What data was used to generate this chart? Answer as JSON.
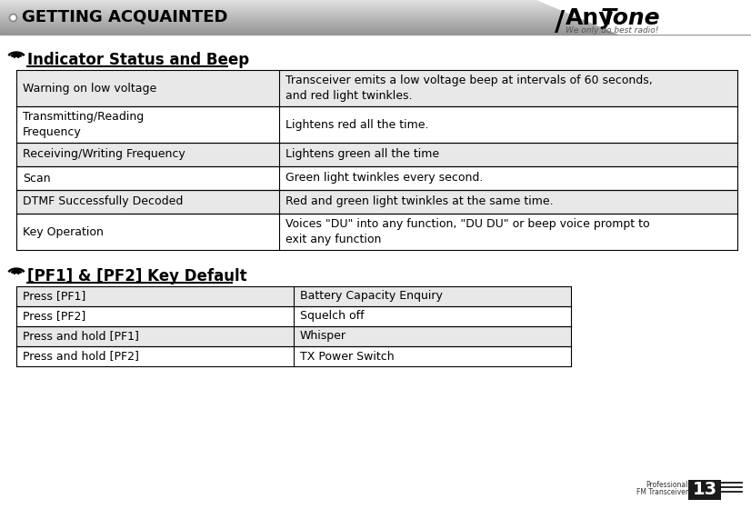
{
  "page_title": "GETTING ACQUAINTED",
  "page_num": "13",
  "page_label_top": "Professional",
  "page_label_bottom": "FM Transceiver",
  "section1_title": "Indicator Status and Beep",
  "section1_rows": [
    [
      "Warning on low voltage",
      "Transceiver emits a low voltage beep at intervals of 60 seconds,\nand red light twinkles."
    ],
    [
      "Transmitting/Reading\nFrequency",
      "Lightens red all the time."
    ],
    [
      "Receiving/Writing Frequency",
      "Lightens green all the time"
    ],
    [
      "Scan",
      "Green light twinkles every second."
    ],
    [
      "DTMF Successfully Decoded",
      "Red and green light twinkles at the same time."
    ],
    [
      "Key Operation",
      "Voices \"DU\" into any function, \"DU DU\" or beep voice prompt to\nexit any function"
    ]
  ],
  "section2_title": "[PF1] & [PF2] Key Default",
  "section2_rows": [
    [
      "Press [PF1]",
      "Battery Capacity Enquiry"
    ],
    [
      "Press [PF2]",
      "Squelch off"
    ],
    [
      "Press and hold [PF1]",
      "Whisper"
    ],
    [
      "Press and hold [PF2]",
      "TX Power Switch"
    ]
  ],
  "table1_col_split": 0.365,
  "table2_col_split": 0.5,
  "bg_color": "#ffffff",
  "odd_row_color": "#e8e8e8",
  "even_row_color": "#ffffff",
  "header_bar_top_color": "#d8d8d8",
  "header_bar_bottom_color": "#888888"
}
